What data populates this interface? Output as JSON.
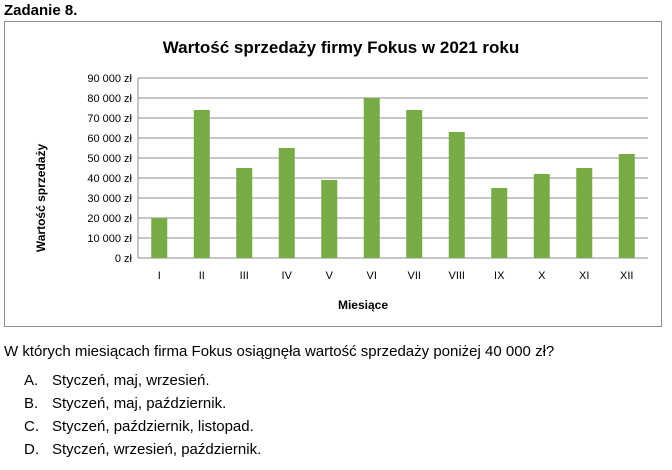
{
  "heading": "Zadanie 8.",
  "question": "W których miesiącach firma Fokus osiągnęła wartość sprzedaży poniżej 40 000 zł?",
  "answers": [
    {
      "letter": "A.",
      "text": "Styczeń, maj, wrzesień."
    },
    {
      "letter": "B.",
      "text": "Styczeń, maj, październik."
    },
    {
      "letter": "C.",
      "text": "Styczeń, październik, listopad."
    },
    {
      "letter": "D.",
      "text": "Styczeń, wrzesień, październik."
    }
  ],
  "chart_data": {
    "type": "bar",
    "title": "Wartość sprzedaży firmy Fokus w 2021 roku",
    "xlabel": "Miesiące",
    "ylabel": "Wartość sprzedaży",
    "categories": [
      "I",
      "II",
      "III",
      "IV",
      "V",
      "VI",
      "VII",
      "VIII",
      "IX",
      "X",
      "XI",
      "XII"
    ],
    "values": [
      20000,
      74000,
      45000,
      55000,
      39000,
      80000,
      74000,
      63000,
      35000,
      42000,
      45000,
      52000
    ],
    "ylim": [
      0,
      90000
    ],
    "yticks": [
      0,
      10000,
      20000,
      30000,
      40000,
      50000,
      60000,
      70000,
      80000,
      90000
    ],
    "ytick_labels": [
      "0 zł",
      "10 000 zł",
      "20 000 zł",
      "30 000 zł",
      "40 000 zł",
      "50 000 zł",
      "60 000 zł",
      "70 000 zł",
      "80 000 zł",
      "90 000 zł"
    ],
    "grid": true,
    "bar_color": "#77ac45",
    "legend": "none"
  }
}
